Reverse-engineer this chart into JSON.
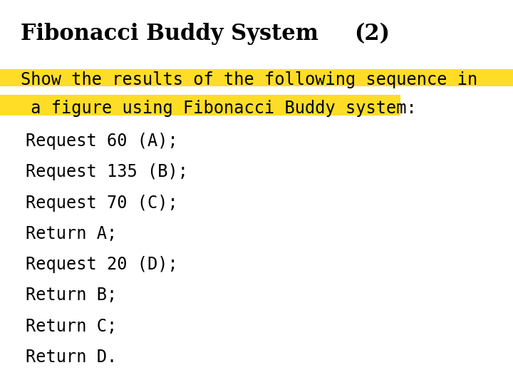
{
  "title_left": "Fibonacci Buddy System",
  "title_right": "(2)",
  "title_fontsize": 22,
  "body_fontsize": 17,
  "highlight_line1": "Show the results of the following sequence in",
  "highlight_line2": " a figure using Fibonacci Buddy system:",
  "highlight_color": "#FFD700",
  "highlight_alpha": 0.85,
  "body_lines": [
    "Request 60 (A);",
    "Request 135 (B);",
    "Request 70 (C);",
    "Return A;",
    "Request 20 (D);",
    "Return B;",
    "Return C;",
    "Return D."
  ],
  "background_color": "#ffffff",
  "text_color": "#000000",
  "title_font": "DejaVu Serif",
  "body_font": "DejaVu Sans Mono",
  "highlight_font": "DejaVu Sans Mono"
}
